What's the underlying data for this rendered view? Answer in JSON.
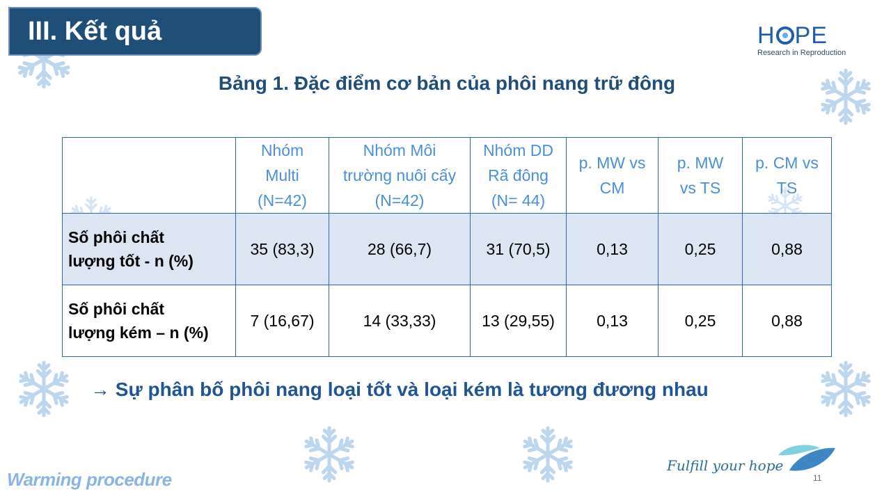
{
  "slide": {
    "section_title": "III. Kết quả",
    "caption": "Bảng 1. Đặc điểm cơ bản của phôi nang trữ đông",
    "logo": {
      "word": "HOPE",
      "word_start": "H",
      "word_end": "PE",
      "subtitle": "Research in Reproduction"
    },
    "conclusion": {
      "arrow": "→",
      "text": "Sự phân bố phôi nang loại tốt và loại kém là tương đương nhau"
    },
    "footer_left": "Warming procedure",
    "tagline": "Fulfill your hope",
    "page_number": "11"
  },
  "table": {
    "headers": [
      "",
      "Nhóm\nMulti\n(N=42)",
      "Nhóm Môi\ntrường nuôi cấy\n(N=42)",
      "Nhóm DD\nRã đông\n(N= 44)",
      "p. MW vs\nCM",
      "p. MW\nvs TS",
      "p. CM vs\nTS"
    ],
    "rows": [
      {
        "label": "Số phôi chất\nlượng tốt - n (%)",
        "cells": [
          "35 (83,3)",
          "28 (66,7)",
          "31 (70,5)",
          "0,13",
          "0,25",
          "0,88"
        ]
      },
      {
        "label": "Số phôi chất\nlượng kém – n (%)",
        "cells": [
          "7 (16,67)",
          "14 (33,33)",
          "13 (29,55)",
          "0,13",
          "0,25",
          "0,88"
        ]
      }
    ]
  },
  "colors": {
    "title_bg": "#1f4e79",
    "caption_text": "#1f4e79",
    "header_text": "#4a8fd9",
    "table_border": "#2f65b5",
    "row_shade": "#dce6f2",
    "conclusion_text": "#1f5496",
    "snowflake": "#bcd6ee"
  },
  "icons": [
    "snowflake-icon",
    "arrow-right-icon",
    "hope-logo",
    "leaf-logo-icon"
  ]
}
